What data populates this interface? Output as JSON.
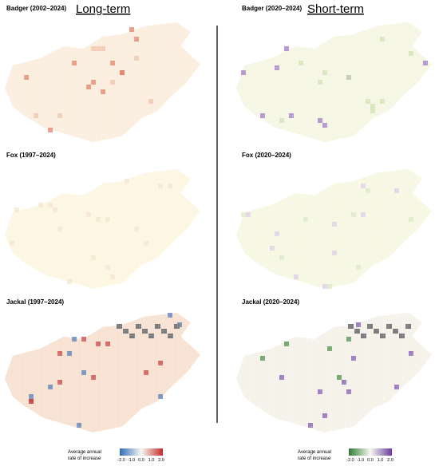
{
  "header": {
    "left": "Long-term",
    "right": "Short-term"
  },
  "panels": [
    {
      "title": "Badger (2002–2024)"
    },
    {
      "title": "Badger (2020–2024)"
    },
    {
      "title": "Fox (1997–2024)"
    },
    {
      "title": "Fox (2020–2024)"
    },
    {
      "title": "Jackal (1997–2024)"
    },
    {
      "title": "Jackal (2020–2024)"
    }
  ],
  "legends": [
    {
      "title_lines": [
        "Average annual",
        "rate of increase"
      ],
      "ticks": [
        "-2.0",
        "-1.0",
        "0.0",
        "1.0",
        "2.0"
      ]
    },
    {
      "title_lines": [
        "Average annual",
        "rate of increase"
      ],
      "ticks": [
        "-2.0",
        "-1.0",
        "0.0",
        "1.0",
        "2.0"
      ]
    }
  ]
}
